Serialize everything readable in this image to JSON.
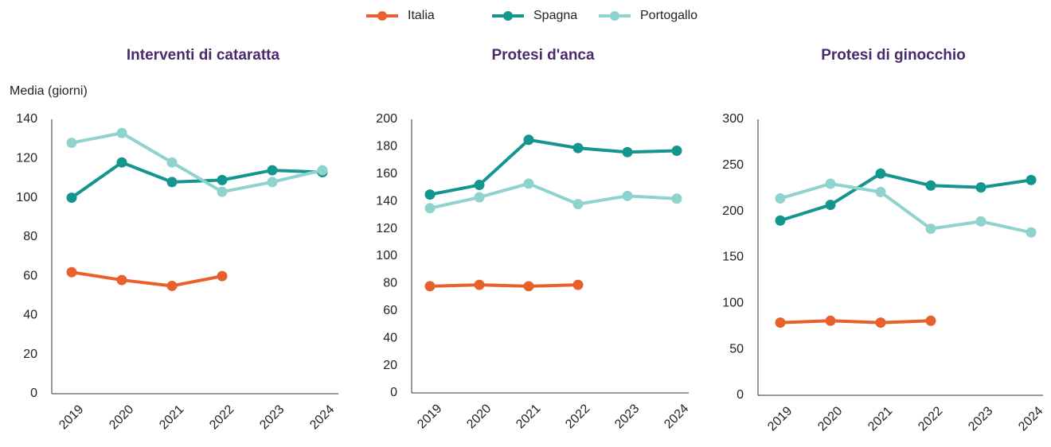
{
  "chart_data": [
    {
      "type": "line",
      "title": "Interventi di cataratta",
      "y_label": "Media (giorni)",
      "categories": [
        "2019",
        "2020",
        "2021",
        "2022",
        "2023",
        "2024"
      ],
      "ylim": [
        0,
        140
      ],
      "yticks": [
        0,
        20,
        40,
        60,
        80,
        100,
        120,
        140
      ],
      "series": [
        {
          "name": "Italia",
          "color": "#e8612c",
          "values": [
            62,
            58,
            55,
            60,
            null,
            null
          ]
        },
        {
          "name": "Spagna",
          "color": "#13968e",
          "values": [
            100,
            118,
            108,
            109,
            114,
            113
          ]
        },
        {
          "name": "Portogallo",
          "color": "#8fd3cf",
          "values": [
            128,
            133,
            118,
            103,
            108,
            114
          ]
        }
      ]
    },
    {
      "type": "line",
      "title": "Protesi d'anca",
      "categories": [
        "2019",
        "2020",
        "2021",
        "2022",
        "2023",
        "2024"
      ],
      "ylim": [
        0,
        200
      ],
      "yticks": [
        0,
        20,
        40,
        60,
        80,
        100,
        120,
        140,
        160,
        180,
        200
      ],
      "series": [
        {
          "name": "Italia",
          "color": "#e8612c",
          "values": [
            78,
            79,
            78,
            79,
            null,
            null
          ]
        },
        {
          "name": "Spagna",
          "color": "#13968e",
          "values": [
            145,
            152,
            185,
            179,
            176,
            177
          ]
        },
        {
          "name": "Portogallo",
          "color": "#8fd3cf",
          "values": [
            135,
            143,
            153,
            138,
            144,
            142
          ]
        }
      ]
    },
    {
      "type": "line",
      "title": "Protesi di ginocchio",
      "categories": [
        "2019",
        "2020",
        "2021",
        "2022",
        "2023",
        "2024"
      ],
      "ylim": [
        0,
        300
      ],
      "yticks": [
        0,
        50,
        100,
        150,
        200,
        250,
        300
      ],
      "series": [
        {
          "name": "Italia",
          "color": "#e8612c",
          "values": [
            79,
            81,
            79,
            81,
            null,
            null
          ]
        },
        {
          "name": "Spagna",
          "color": "#13968e",
          "values": [
            190,
            207,
            241,
            228,
            226,
            234
          ]
        },
        {
          "name": "Portogallo",
          "color": "#8fd3cf",
          "values": [
            214,
            230,
            221,
            181,
            189,
            177
          ]
        }
      ]
    }
  ]
}
